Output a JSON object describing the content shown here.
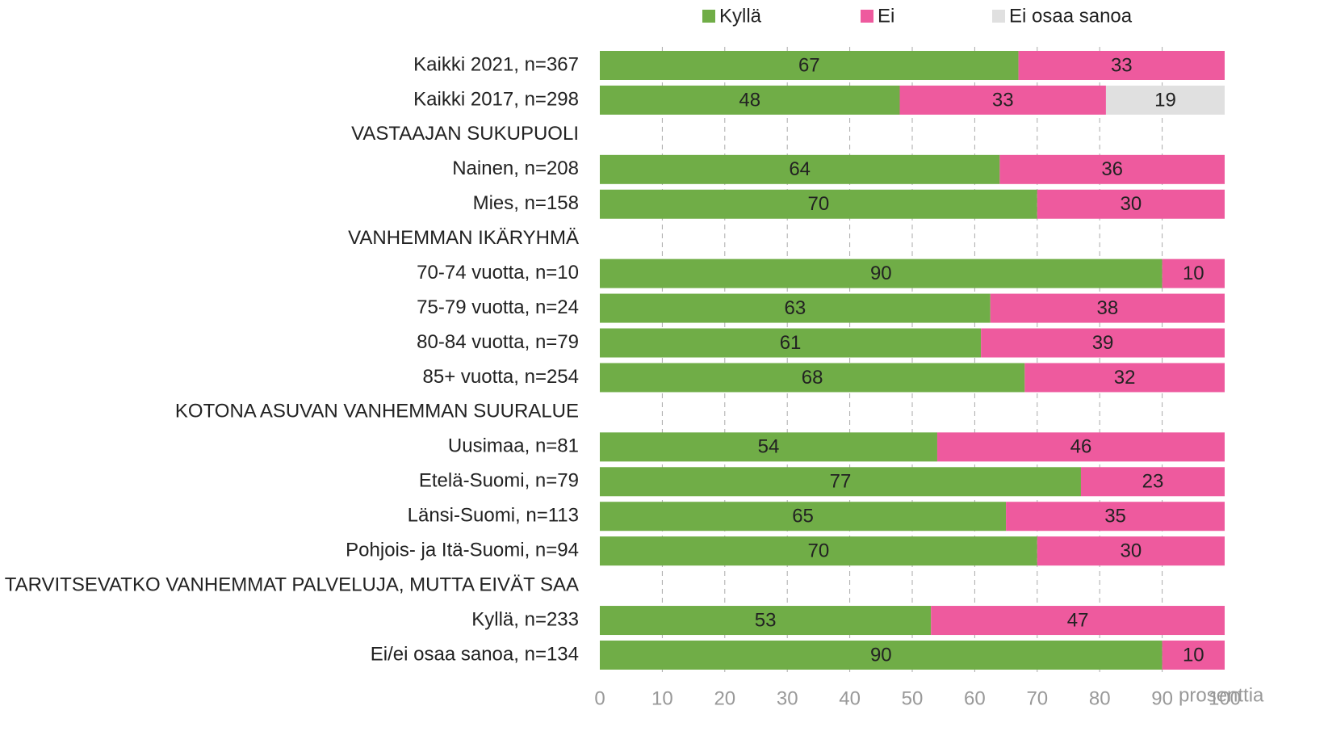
{
  "chart_data": {
    "type": "stacked_barh",
    "categories": [
      "Kaikki 2021, n=367",
      "Kaikki 2017, n=298",
      "VASTAAJAN SUKUPUOLI",
      "Nainen, n=208",
      "Mies, n=158",
      "VANHEMMAN IKÄRYHMÄ",
      "70-74 vuotta, n=10",
      "75-79 vuotta, n=24",
      "80-84 vuotta, n=79",
      "85+ vuotta, n=254",
      "KOTONA ASUVAN VANHEMMAN SUURALUE",
      "Uusimaa, n=81",
      "Etelä-Suomi, n=79",
      "Länsi-Suomi, n=113",
      "Pohjois- ja Itä-Suomi, n=94",
      "TARVITSEVATKO VANHEMMAT PALVELUJA, MUTTA EIVÄT SAA",
      "Kyllä, n=233",
      "Ei/ei osaa sanoa, n=134"
    ],
    "series": [
      {
        "name": "Kyllä",
        "color": "#70ad47",
        "values": [
          67,
          48,
          null,
          64,
          70,
          null,
          90,
          62.5,
          61,
          68,
          null,
          54,
          77,
          65,
          70,
          null,
          53,
          90
        ],
        "value_labels": [
          "67",
          "48",
          null,
          "64",
          "70",
          null,
          "90",
          "63",
          "61",
          "68",
          null,
          "54",
          "77",
          "65",
          "70",
          null,
          "53",
          "90"
        ]
      },
      {
        "name": "Ei",
        "color": "#ee5a9e",
        "values": [
          33,
          33,
          null,
          36,
          30,
          null,
          10,
          37.5,
          39,
          32,
          null,
          46,
          23,
          35,
          30,
          null,
          47,
          10
        ],
        "value_labels": [
          "33",
          "33",
          null,
          "36",
          "30",
          null,
          "10",
          "38",
          "39",
          "32",
          null,
          "46",
          "23",
          "35",
          "30",
          null,
          "47",
          "10"
        ]
      },
      {
        "name": "Ei osaa sanoa",
        "color": "#e0e0e0",
        "values": [
          null,
          19,
          null,
          null,
          null,
          null,
          null,
          null,
          null,
          null,
          null,
          null,
          null,
          null,
          null,
          null,
          null,
          null
        ]
      }
    ],
    "xlim": [
      0,
      100
    ],
    "xticks": [
      0,
      10,
      20,
      30,
      40,
      50,
      60,
      70,
      80,
      90,
      100
    ],
    "x_label": "prosenttia",
    "grid": true,
    "legend": "top"
  }
}
